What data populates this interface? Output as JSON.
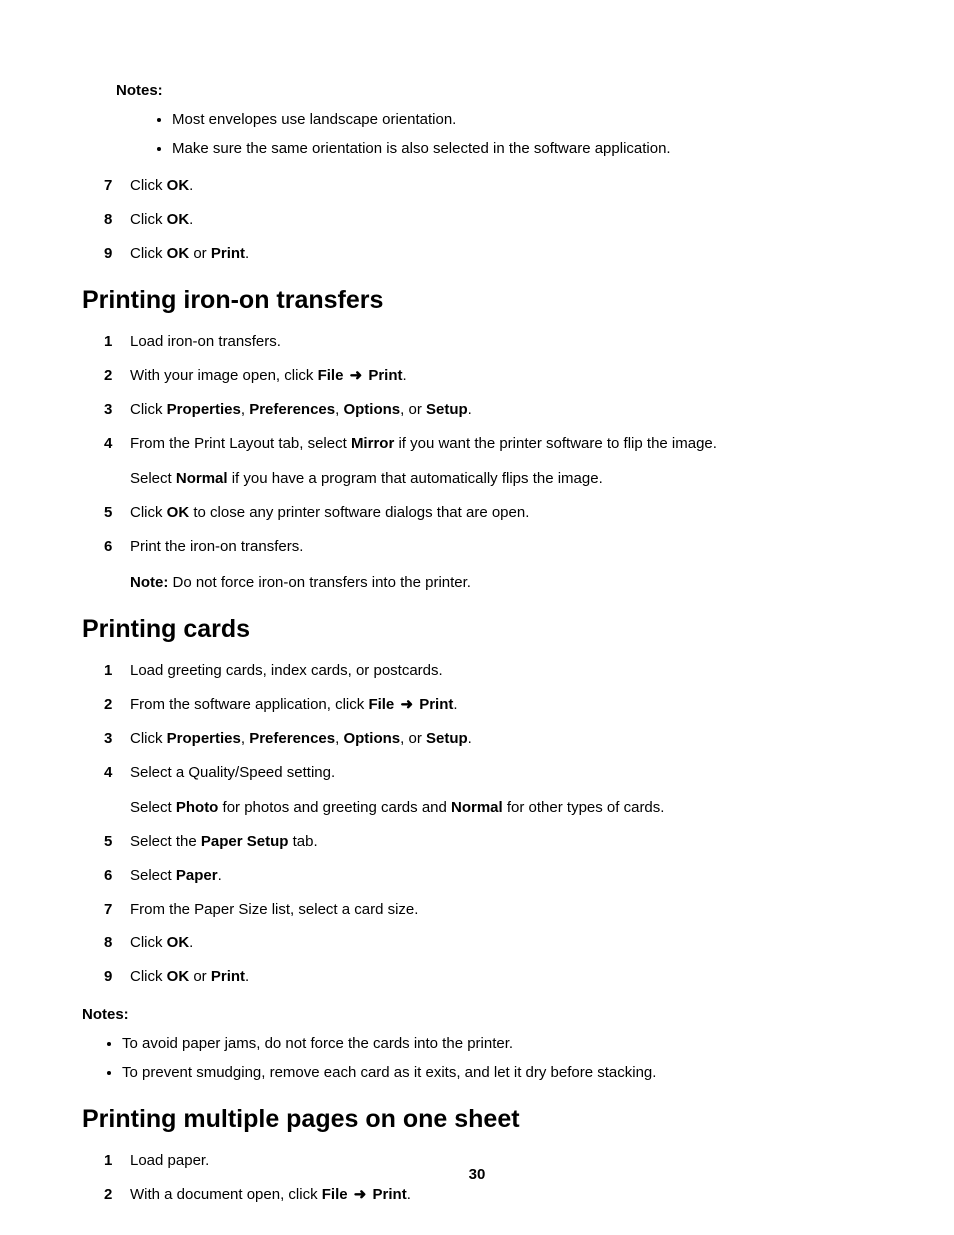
{
  "topNotes": {
    "label": "Notes:",
    "items": [
      "Most envelopes use landscape orientation.",
      "Make sure the same orientation is also selected in the software application."
    ]
  },
  "topSteps": [
    {
      "n": "7",
      "segments": [
        {
          "t": "Click "
        },
        {
          "t": "OK",
          "b": true
        },
        {
          "t": "."
        }
      ]
    },
    {
      "n": "8",
      "segments": [
        {
          "t": "Click "
        },
        {
          "t": "OK",
          "b": true
        },
        {
          "t": "."
        }
      ]
    },
    {
      "n": "9",
      "segments": [
        {
          "t": "Click "
        },
        {
          "t": "OK",
          "b": true
        },
        {
          "t": " or "
        },
        {
          "t": "Print",
          "b": true
        },
        {
          "t": "."
        }
      ]
    }
  ],
  "sectionA": {
    "title": "Printing iron-on transfers",
    "steps": [
      {
        "n": "1",
        "segments": [
          {
            "t": "Load iron-on transfers."
          }
        ]
      },
      {
        "n": "2",
        "segments": [
          {
            "t": "With your image open, click "
          },
          {
            "t": "File",
            "b": true
          },
          {
            "arrow": true
          },
          {
            "t": "Print",
            "b": true
          },
          {
            "t": "."
          }
        ]
      },
      {
        "n": "3",
        "segments": [
          {
            "t": "Click "
          },
          {
            "t": "Properties",
            "b": true
          },
          {
            "t": ", "
          },
          {
            "t": "Preferences",
            "b": true
          },
          {
            "t": ", "
          },
          {
            "t": "Options",
            "b": true
          },
          {
            "t": ", or "
          },
          {
            "t": "Setup",
            "b": true
          },
          {
            "t": "."
          }
        ]
      },
      {
        "n": "4",
        "segments": [
          {
            "t": "From the Print Layout tab, select "
          },
          {
            "t": "Mirror",
            "b": true
          },
          {
            "t": " if you want the printer software to flip the image."
          }
        ],
        "subSegments": [
          {
            "t": "Select "
          },
          {
            "t": "Normal",
            "b": true
          },
          {
            "t": " if you have a program that automatically flips the image."
          }
        ]
      },
      {
        "n": "5",
        "segments": [
          {
            "t": "Click "
          },
          {
            "t": "OK",
            "b": true
          },
          {
            "t": " to close any printer software dialogs that are open."
          }
        ]
      },
      {
        "n": "6",
        "segments": [
          {
            "t": "Print the iron-on transfers."
          }
        ],
        "subSegments": [
          {
            "t": "Note:",
            "b": true
          },
          {
            "t": " Do not force iron-on transfers into the printer."
          }
        ]
      }
    ]
  },
  "sectionB": {
    "title": "Printing cards",
    "steps": [
      {
        "n": "1",
        "segments": [
          {
            "t": "Load greeting cards, index cards, or postcards."
          }
        ]
      },
      {
        "n": "2",
        "segments": [
          {
            "t": "From the software application, click "
          },
          {
            "t": "File",
            "b": true
          },
          {
            "arrow": true
          },
          {
            "t": "Print",
            "b": true
          },
          {
            "t": "."
          }
        ]
      },
      {
        "n": "3",
        "segments": [
          {
            "t": "Click "
          },
          {
            "t": "Properties",
            "b": true
          },
          {
            "t": ", "
          },
          {
            "t": "Preferences",
            "b": true
          },
          {
            "t": ", "
          },
          {
            "t": "Options",
            "b": true
          },
          {
            "t": ", or "
          },
          {
            "t": "Setup",
            "b": true
          },
          {
            "t": "."
          }
        ]
      },
      {
        "n": "4",
        "segments": [
          {
            "t": "Select a Quality/Speed setting."
          }
        ],
        "subSegments": [
          {
            "t": "Select "
          },
          {
            "t": "Photo",
            "b": true
          },
          {
            "t": " for photos and greeting cards and "
          },
          {
            "t": "Normal",
            "b": true
          },
          {
            "t": " for other types of cards."
          }
        ]
      },
      {
        "n": "5",
        "segments": [
          {
            "t": "Select the "
          },
          {
            "t": "Paper Setup",
            "b": true
          },
          {
            "t": " tab."
          }
        ]
      },
      {
        "n": "6",
        "segments": [
          {
            "t": "Select "
          },
          {
            "t": "Paper",
            "b": true
          },
          {
            "t": "."
          }
        ]
      },
      {
        "n": "7",
        "segments": [
          {
            "t": "From the Paper Size list, select a card size."
          }
        ]
      },
      {
        "n": "8",
        "segments": [
          {
            "t": "Click "
          },
          {
            "t": "OK",
            "b": true
          },
          {
            "t": "."
          }
        ]
      },
      {
        "n": "9",
        "segments": [
          {
            "t": "Click "
          },
          {
            "t": "OK",
            "b": true
          },
          {
            "t": " or "
          },
          {
            "t": "Print",
            "b": true
          },
          {
            "t": "."
          }
        ]
      }
    ],
    "notes": {
      "label": "Notes:",
      "items": [
        "To avoid paper jams, do not force the cards into the printer.",
        "To prevent smudging, remove each card as it exits, and let it dry before stacking."
      ]
    }
  },
  "sectionC": {
    "title": "Printing multiple pages on one sheet",
    "steps": [
      {
        "n": "1",
        "segments": [
          {
            "t": "Load paper."
          }
        ]
      },
      {
        "n": "2",
        "segments": [
          {
            "t": "With a document open, click "
          },
          {
            "t": "File",
            "b": true
          },
          {
            "arrow": true
          },
          {
            "t": "Print",
            "b": true
          },
          {
            "t": "."
          }
        ]
      }
    ]
  },
  "pageNumber": "30"
}
